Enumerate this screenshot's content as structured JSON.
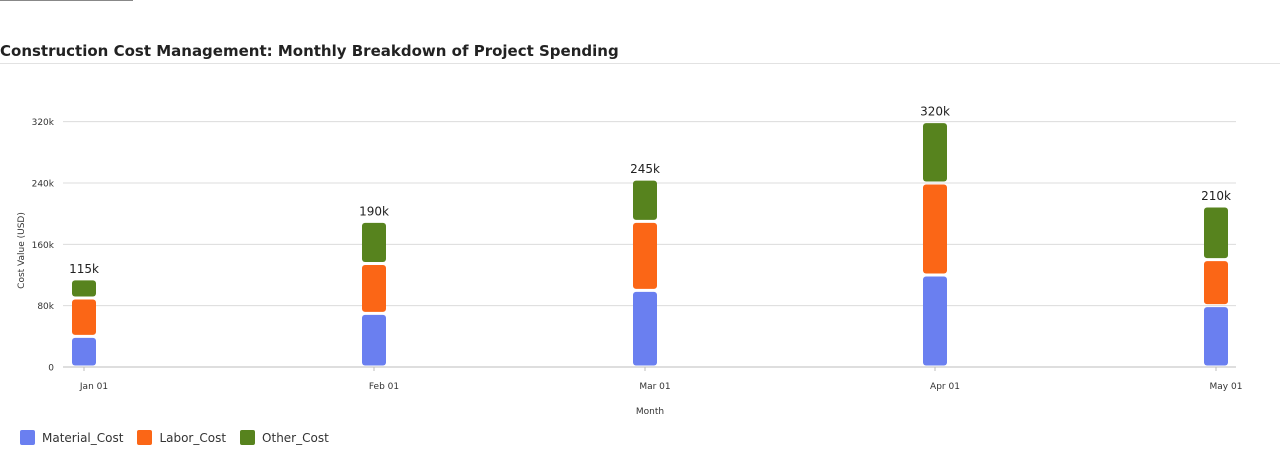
{
  "chart_data": {
    "type": "bar",
    "stacked": true,
    "title": "Construction Cost Management: Monthly Breakdown of Project Spending",
    "xlabel": "Month",
    "ylabel": "Cost Value (USD)",
    "categories": [
      "Jan 01",
      "Feb 01",
      "Mar 01",
      "Apr 01",
      "May 01"
    ],
    "series": [
      {
        "name": "Material_Cost",
        "color": "#6a7ff0",
        "values": [
          40000,
          70000,
          100000,
          120000,
          80000
        ]
      },
      {
        "name": "Labor_Cost",
        "color": "#fb6616",
        "values": [
          50000,
          65000,
          90000,
          120000,
          60000
        ]
      },
      {
        "name": "Other_Cost",
        "color": "#57831e",
        "values": [
          25000,
          55000,
          55000,
          80000,
          70000
        ]
      }
    ],
    "totals": [
      "115k",
      "190k",
      "245k",
      "320k",
      "210k"
    ],
    "yticks": [
      0,
      80000,
      160000,
      240000,
      320000
    ],
    "ytick_labels": [
      "0",
      "80k",
      "160k",
      "240k",
      "320k"
    ],
    "ylim": [
      0,
      330000
    ],
    "grid": true,
    "legend_position": "bottom-left"
  }
}
